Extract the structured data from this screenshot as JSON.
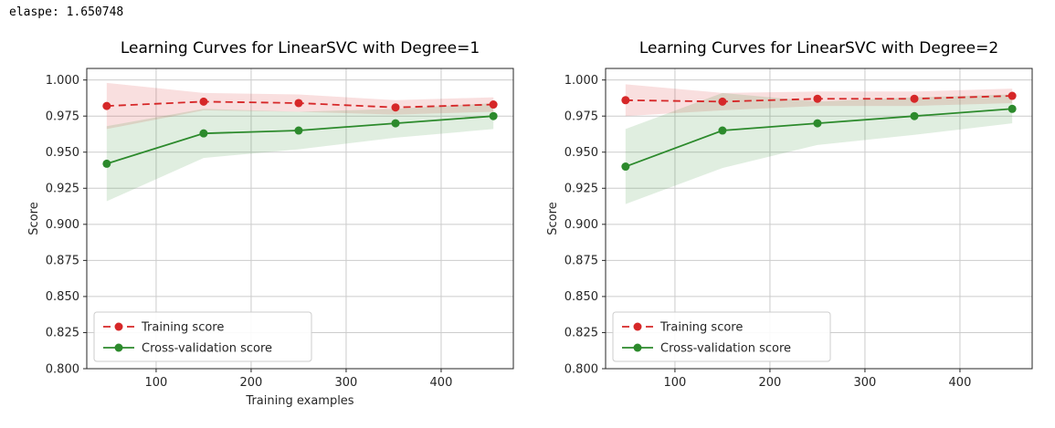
{
  "header": {
    "elapse": "elaspe: 1.650748"
  },
  "colors": {
    "training": "#d62728",
    "cross_validation": "#2c8a2c",
    "band_opacity": 0.15,
    "grid": "#cccccc",
    "spine": "#262626",
    "tick_text": "#262626",
    "legend_border": "#cccccc",
    "legend_bg": "#ffffff"
  },
  "legend": {
    "position": "lower left",
    "training_label": "Training score",
    "cv_label": "Cross-validation score"
  },
  "axes": {
    "ylabel": "Score",
    "xlabel": "Training examples",
    "xticks": [
      100,
      200,
      300,
      400
    ],
    "yticks": [
      0.8,
      0.825,
      0.85,
      0.875,
      0.9,
      0.925,
      0.95,
      0.975,
      1.0
    ],
    "xlim": [
      27,
      476
    ],
    "ylim": [
      0.8,
      1.008
    ],
    "grid": true
  },
  "chart_data": [
    {
      "type": "line",
      "title": "Learning Curves for LinearSVC with Degree=1",
      "xlabel": "Training examples",
      "ylabel": "Score",
      "x": [
        48,
        150,
        250,
        352,
        455
      ],
      "series": [
        {
          "name": "Training score",
          "style": "dashed",
          "values": [
            0.982,
            0.985,
            0.984,
            0.981,
            0.983
          ],
          "band_upper": [
            0.998,
            0.991,
            0.99,
            0.986,
            0.988
          ],
          "band_lower": [
            0.966,
            0.979,
            0.978,
            0.976,
            0.978
          ]
        },
        {
          "name": "Cross-validation score",
          "style": "solid",
          "values": [
            0.942,
            0.963,
            0.965,
            0.97,
            0.975
          ],
          "band_upper": [
            0.968,
            0.98,
            0.978,
            0.98,
            0.984
          ],
          "band_lower": [
            0.916,
            0.946,
            0.952,
            0.96,
            0.966
          ]
        }
      ]
    },
    {
      "type": "line",
      "title": "Learning Curves for LinearSVC with Degree=2",
      "xlabel": "",
      "ylabel": "Score",
      "x": [
        48,
        150,
        250,
        352,
        455
      ],
      "series": [
        {
          "name": "Training score",
          "style": "dashed",
          "values": [
            0.986,
            0.985,
            0.987,
            0.987,
            0.989
          ],
          "band_upper": [
            0.997,
            0.991,
            0.992,
            0.992,
            0.994
          ],
          "band_lower": [
            0.975,
            0.979,
            0.982,
            0.982,
            0.984
          ]
        },
        {
          "name": "Cross-validation score",
          "style": "solid",
          "values": [
            0.94,
            0.965,
            0.97,
            0.975,
            0.98
          ],
          "band_upper": [
            0.966,
            0.991,
            0.985,
            0.988,
            0.99
          ],
          "band_lower": [
            0.914,
            0.939,
            0.955,
            0.962,
            0.97
          ]
        }
      ]
    }
  ]
}
